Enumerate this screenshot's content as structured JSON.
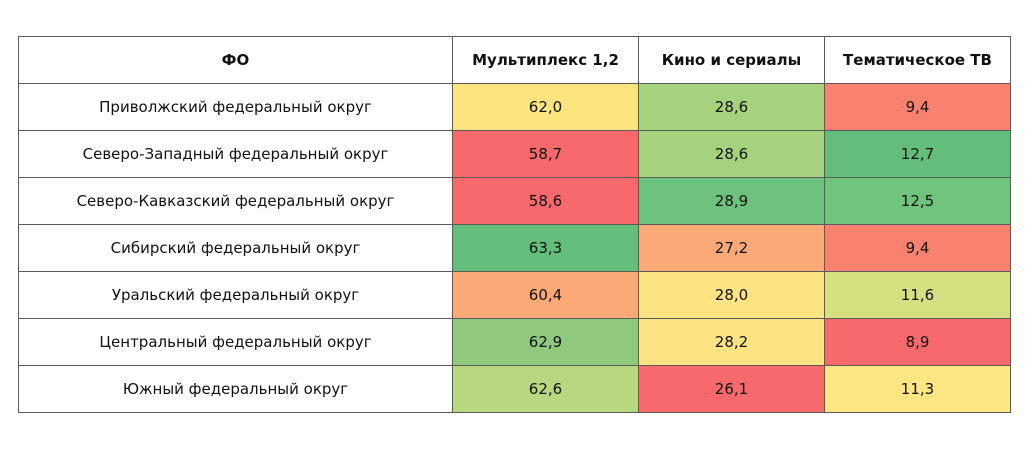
{
  "chart_data": {
    "type": "heatmap",
    "title": "",
    "row_header": "ФО",
    "columns": [
      "Мультиплекс 1,2",
      "Кино и сериалы",
      "Тематическое ТВ"
    ],
    "rows": [
      {
        "region": "Приволжский федеральный округ",
        "values": [
          "62,0",
          "28,6",
          "9,4"
        ]
      },
      {
        "region": "Северо-Западный федеральный округ",
        "values": [
          "58,7",
          "28,6",
          "12,7"
        ]
      },
      {
        "region": "Северо-Кавказский федеральный округ",
        "values": [
          "58,6",
          "28,9",
          "12,5"
        ]
      },
      {
        "region": "Сибирский федеральный округ",
        "values": [
          "63,3",
          "27,2",
          "9,4"
        ]
      },
      {
        "region": "Уральский федеральный округ",
        "values": [
          "60,4",
          "28,0",
          "11,6"
        ]
      },
      {
        "region": "Центральный федеральный округ",
        "values": [
          "62,9",
          "28,2",
          "8,9"
        ]
      },
      {
        "region": "Южный федеральный округ",
        "values": [
          "62,6",
          "26,1",
          "11,3"
        ]
      }
    ],
    "cell_colors": [
      [
        "#fde47f",
        "#a6d27e",
        "#f8816f"
      ],
      [
        "#f8696b",
        "#a6d27e",
        "#63be7b"
      ],
      [
        "#f8696b",
        "#6dc27d",
        "#71c47c"
      ],
      [
        "#63be7b",
        "#fbaa77",
        "#f8816f"
      ],
      [
        "#fbaa77",
        "#fee382",
        "#d5e080"
      ],
      [
        "#8ec97d",
        "#fee382",
        "#f8696b"
      ],
      [
        "#b8d87f",
        "#f8696b",
        "#fee683"
      ]
    ]
  }
}
